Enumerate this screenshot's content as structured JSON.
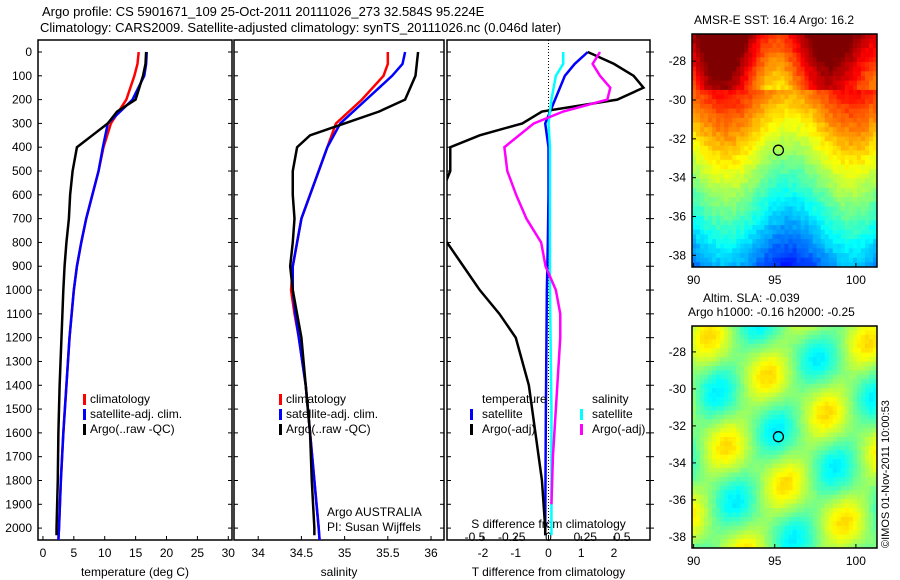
{
  "title_line1": "Argo profile: CS 5901671_109 25-Oct-2011 20111026_273 32.584S 95.224E",
  "title_line2": "Climatology: CARS2009. Satellite-adjusted climatology: synTS_20111026.nc (0.046d later)",
  "colors": {
    "climatology": "#ff0000",
    "satellite": "#0000ff",
    "argo": "#000000",
    "sal_satellite": "#00ffff",
    "sal_argo": "#ff00ff"
  },
  "chart_data": [
    {
      "type": "line",
      "name": "temperature",
      "xlabel": "temperature (deg C)",
      "ylabel": "depth",
      "xlim": [
        -0.8,
        30.6
      ],
      "ylim": [
        2050,
        0
      ],
      "xticks": [
        0,
        5,
        10,
        15,
        20,
        25,
        30
      ],
      "yticks": [
        0,
        100,
        200,
        300,
        400,
        500,
        600,
        700,
        800,
        900,
        1000,
        1100,
        1200,
        1300,
        1400,
        1500,
        1600,
        1700,
        1800,
        1900,
        2000
      ],
      "legend": [
        "climatology",
        "satellite-adj. clim.",
        "Argo(..raw -QC)"
      ],
      "series": [
        {
          "name": "climatology",
          "color": "#ff0000",
          "depth": [
            0,
            50,
            100,
            200,
            300,
            400,
            500,
            600,
            700,
            800,
            900,
            1000,
            1200,
            1400,
            1600,
            1800,
            2000,
            2050
          ],
          "values": [
            15.5,
            15.3,
            14.8,
            13.5,
            11,
            9.8,
            9,
            8,
            7,
            6.2,
            5.5,
            5,
            4.3,
            3.8,
            3.3,
            2.9,
            2.6,
            2.5
          ]
        },
        {
          "name": "satellite-adj. clim.",
          "color": "#0000ff",
          "depth": [
            0,
            50,
            100,
            200,
            300,
            400,
            500,
            600,
            700,
            800,
            900,
            1000,
            1200,
            1400,
            1600,
            1800,
            2000,
            2050
          ],
          "values": [
            16.8,
            16.7,
            16.4,
            14.5,
            10.5,
            9.7,
            9,
            8,
            7,
            6.2,
            5.5,
            5,
            4.3,
            3.8,
            3.3,
            2.9,
            2.6,
            2.5
          ]
        },
        {
          "name": "Argo(..raw -QC)",
          "color": "#000000",
          "depth": [
            0,
            50,
            100,
            200,
            250,
            300,
            350,
            400,
            500,
            600,
            700,
            800,
            900,
            1000,
            1200,
            1400,
            1600,
            1800,
            2000,
            2030
          ],
          "values": [
            16.7,
            16.6,
            16.2,
            15,
            12,
            10.5,
            8,
            5.5,
            4.8,
            4.4,
            4.2,
            3.8,
            3.5,
            3.3,
            3.0,
            2.7,
            2.5,
            2.4,
            2.2,
            2.2
          ]
        }
      ]
    },
    {
      "type": "line",
      "name": "salinity",
      "xlabel": "salinity",
      "xlim": [
        33.72,
        36.15
      ],
      "ylim": [
        2050,
        0
      ],
      "xticks": [
        34,
        34.5,
        35,
        35.5,
        36
      ],
      "legend": [
        "climatology",
        "satellite-adj. clim.",
        "Argo(..raw -QC)"
      ],
      "annotation": [
        "Argo AUSTRALIA",
        "PI: Susan Wijffels"
      ],
      "series": [
        {
          "name": "climatology",
          "color": "#ff0000",
          "depth": [
            0,
            50,
            100,
            200,
            300,
            400,
            500,
            600,
            700,
            800,
            900,
            1000,
            1100,
            1200,
            1400,
            1600,
            1800,
            2000,
            2050
          ],
          "values": [
            35.5,
            35.5,
            35.45,
            35.2,
            34.9,
            34.8,
            34.7,
            34.6,
            34.5,
            34.45,
            34.4,
            34.38,
            34.42,
            34.47,
            34.55,
            34.6,
            34.65,
            34.7,
            34.71
          ]
        },
        {
          "name": "satellite-adj. clim.",
          "color": "#0000ff",
          "depth": [
            0,
            50,
            100,
            200,
            300,
            400,
            500,
            600,
            700,
            800,
            900,
            1000,
            1100,
            1200,
            1400,
            1600,
            1800,
            2000,
            2050
          ],
          "values": [
            35.7,
            35.67,
            35.55,
            35.25,
            34.95,
            34.8,
            34.7,
            34.6,
            34.5,
            34.45,
            34.4,
            34.4,
            34.43,
            34.47,
            34.55,
            34.6,
            34.65,
            34.7,
            34.71
          ]
        },
        {
          "name": "Argo(..raw -QC)",
          "color": "#000000",
          "depth": [
            0,
            100,
            200,
            250,
            300,
            350,
            400,
            500,
            600,
            700,
            800,
            900,
            1000,
            1200,
            1400,
            1600,
            1800,
            2000,
            2030
          ],
          "values": [
            35.85,
            35.82,
            35.7,
            35.4,
            35.0,
            34.6,
            34.45,
            34.4,
            34.4,
            34.42,
            34.4,
            34.37,
            34.4,
            34.5,
            34.55,
            34.6,
            34.62,
            34.65,
            34.65
          ]
        }
      ]
    },
    {
      "type": "line",
      "name": "differences",
      "xlabel": "T difference from climatology",
      "x2label": "S difference from climatology",
      "xlim": [
        -3.1,
        3.1
      ],
      "x2lim": [
        -0.69,
        0.69
      ],
      "ylim": [
        2050,
        0
      ],
      "xticks": [
        -2,
        -1,
        0,
        1,
        2
      ],
      "x2ticks": [
        -0.5,
        -0.25,
        0,
        0.25,
        0.5
      ],
      "legend_headers": [
        "temperature",
        "salinity"
      ],
      "legend": [
        "satellite",
        "Argo(-adj)",
        "satellite",
        "Argo(-adj)"
      ],
      "series": [
        {
          "name": "T satellite",
          "axis": "T",
          "color": "#0000ff",
          "depth": [
            0,
            50,
            100,
            200,
            300,
            400,
            600,
            800,
            1000,
            1500,
            2000,
            2030
          ],
          "values": [
            1.2,
            0.8,
            0.5,
            0.2,
            -0.1,
            0,
            0,
            -0.02,
            -0.05,
            -0.08,
            -0.1,
            -0.1
          ]
        },
        {
          "name": "T Argo(-adj)",
          "axis": "T",
          "color": "#000000",
          "depth": [
            0,
            50,
            100,
            150,
            200,
            250,
            300,
            350,
            400,
            500,
            600,
            650,
            750,
            800,
            900,
            1000,
            1100,
            1200,
            1400,
            1600,
            1800,
            2000,
            2030
          ],
          "values": [
            1.2,
            2,
            2.6,
            2.9,
            2.1,
            -0.2,
            -0.8,
            -2.1,
            -3,
            -3,
            -3.3,
            -3.5,
            -3.5,
            -3.1,
            -2.6,
            -2.1,
            -1.5,
            -1.0,
            -0.6,
            -0.4,
            -0.2,
            -0.1,
            -0.1
          ]
        },
        {
          "name": "S satellite",
          "axis": "S",
          "color": "#00ffff",
          "depth": [
            0,
            50,
            100,
            200,
            300,
            400,
            600,
            1000,
            1500,
            2000,
            2030
          ],
          "values": [
            0.1,
            0.1,
            0.05,
            0.02,
            0,
            0.01,
            0.01,
            0.01,
            0.02,
            0.02,
            0.02
          ]
        },
        {
          "name": "S Argo(-adj)",
          "axis": "S",
          "color": "#ff00ff",
          "depth": [
            0,
            50,
            100,
            150,
            200,
            250,
            300,
            400,
            500,
            600,
            700,
            800,
            900,
            1000,
            1100,
            1200,
            1300,
            1500,
            1700,
            1900
          ],
          "values": [
            0.35,
            0.3,
            0.35,
            0.42,
            0.4,
            0.1,
            -0.1,
            -0.3,
            -0.28,
            -0.22,
            -0.15,
            -0.05,
            -0.02,
            0.05,
            0.08,
            0.08,
            0.07,
            0.05,
            0.03,
            0.02
          ]
        }
      ]
    },
    {
      "type": "heatmap",
      "name": "sst-map",
      "title": "AMSR-E SST: 16.4 Argo: 16.2",
      "xticks": [
        90,
        95,
        100
      ],
      "yticks": [
        -28,
        -30,
        -32,
        -34,
        -36,
        -38
      ],
      "xlim": [
        89.9,
        101.3
      ],
      "ylim": [
        -38.6,
        -26.6
      ],
      "marker": [
        95.224,
        -32.584
      ]
    },
    {
      "type": "heatmap",
      "name": "sla-map",
      "title": [
        "Altim. SLA: -0.039",
        "Argo h1000: -0.16 h2000: -0.25"
      ],
      "xticks": [
        90,
        95,
        100
      ],
      "yticks": [
        -28,
        -30,
        -32,
        -34,
        -36,
        -38
      ],
      "xlim": [
        89.9,
        101.3
      ],
      "ylim": [
        -38.6,
        -26.6
      ],
      "marker": [
        95.224,
        -32.584
      ]
    }
  ],
  "credit": "©IMOS 01-Nov-2011 10:00:53"
}
